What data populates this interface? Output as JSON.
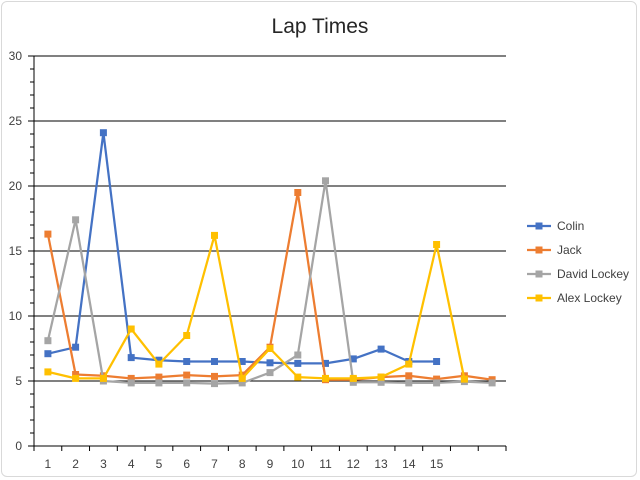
{
  "chart_data": {
    "type": "line",
    "title": "Lap Times",
    "xlabel": "",
    "ylabel": "",
    "ylim": [
      0,
      30
    ],
    "yticks": [
      0,
      5,
      10,
      15,
      20,
      25,
      30
    ],
    "categories": [
      "1",
      "2",
      "3",
      "4",
      "5",
      "6",
      "7",
      "8",
      "9",
      "10",
      "11",
      "12",
      "13",
      "14",
      "15",
      "",
      ""
    ],
    "grid": true,
    "legend_position": "right",
    "series": [
      {
        "name": "Colin",
        "color": "#4472c4",
        "values": [
          7.1,
          7.6,
          24.1,
          6.8,
          6.6,
          6.5,
          6.5,
          6.5,
          6.4,
          6.35,
          6.35,
          6.7,
          7.45,
          6.5,
          6.5,
          null,
          null
        ]
      },
      {
        "name": "Jack",
        "color": "#ed7d31",
        "values": [
          16.3,
          5.5,
          5.4,
          5.2,
          5.3,
          5.45,
          5.35,
          5.45,
          7.6,
          19.5,
          5.1,
          5.1,
          5.3,
          5.4,
          5.15,
          5.4,
          5.1
        ]
      },
      {
        "name": "David Lockey",
        "color": "#a5a5a5",
        "values": [
          8.1,
          17.4,
          5.0,
          4.85,
          4.85,
          4.85,
          4.8,
          4.85,
          5.65,
          7.0,
          20.4,
          4.9,
          4.9,
          4.85,
          4.85,
          4.95,
          4.85
        ]
      },
      {
        "name": "Alex Lockey",
        "color": "#ffc000",
        "values": [
          5.7,
          5.2,
          5.2,
          9.0,
          6.3,
          8.5,
          16.2,
          5.2,
          7.5,
          5.3,
          5.2,
          5.2,
          5.3,
          6.3,
          15.5,
          5.15,
          null
        ]
      }
    ]
  }
}
